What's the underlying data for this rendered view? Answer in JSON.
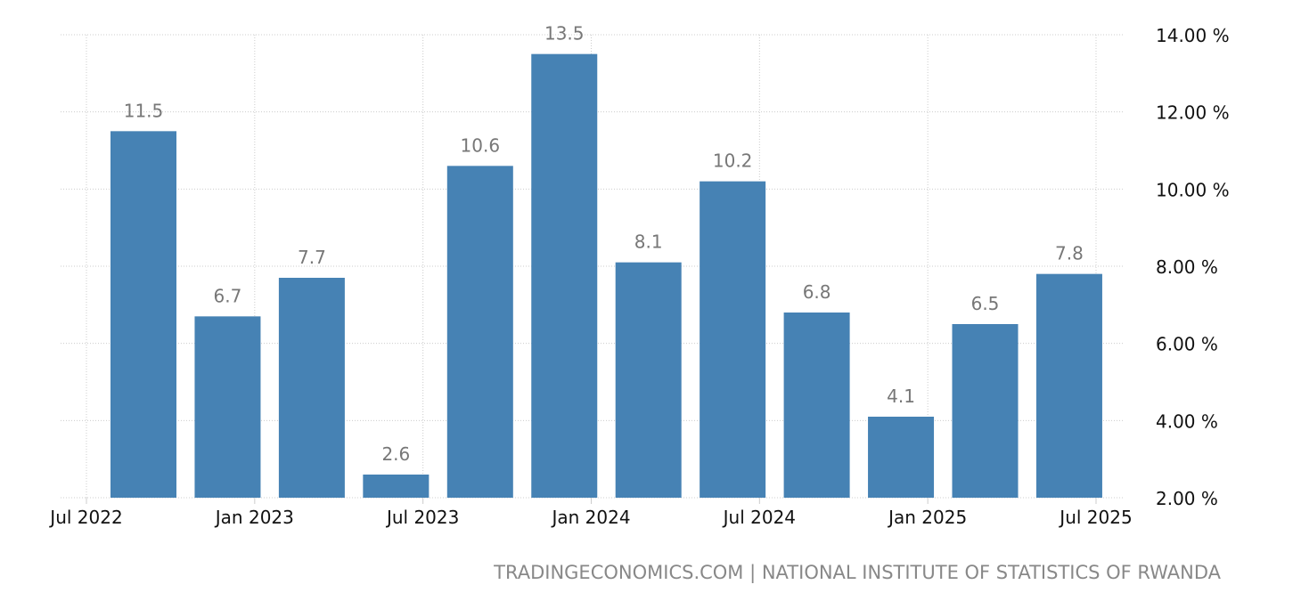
{
  "chart_data": {
    "type": "bar",
    "categories": [
      "2022-09",
      "2022-12",
      "2023-03",
      "2023-06",
      "2023-09",
      "2023-12",
      "2024-03",
      "2024-06",
      "2024-09",
      "2024-12",
      "2025-03",
      "2025-06"
    ],
    "values": [
      11.5,
      6.7,
      7.7,
      2.6,
      10.6,
      13.5,
      8.1,
      10.2,
      6.8,
      4.1,
      6.5,
      7.8
    ],
    "data_labels": [
      "11.5",
      "6.7",
      "7.7",
      "2.6",
      "10.6",
      "13.5",
      "8.1",
      "10.2",
      "6.8",
      "4.1",
      "6.5",
      "7.8"
    ],
    "title": "",
    "xlabel": "",
    "ylabel": "",
    "ylim": [
      2,
      14
    ],
    "y_ticks": [
      2,
      4,
      6,
      8,
      10,
      12,
      14
    ],
    "y_tick_labels": [
      "2.00 %",
      "4.00 %",
      "6.00 %",
      "8.00 %",
      "10.00 %",
      "12.00 %",
      "14.00 %"
    ],
    "y_axis_position": "right",
    "x_ticks": [
      "2022-07",
      "2023-01",
      "2023-07",
      "2024-01",
      "2024-07",
      "2025-01",
      "2025-07"
    ],
    "x_tick_labels": [
      "Jul 2022",
      "Jan 2023",
      "Jul 2023",
      "Jan 2024",
      "Jul 2024",
      "Jan 2025",
      "Jul 2025"
    ],
    "grid": true,
    "legend": "none",
    "bar_color": "#4682b4",
    "label_color": "#777777"
  },
  "source": "TRADINGECONOMICS.COM | NATIONAL INSTITUTE OF STATISTICS OF RWANDA"
}
